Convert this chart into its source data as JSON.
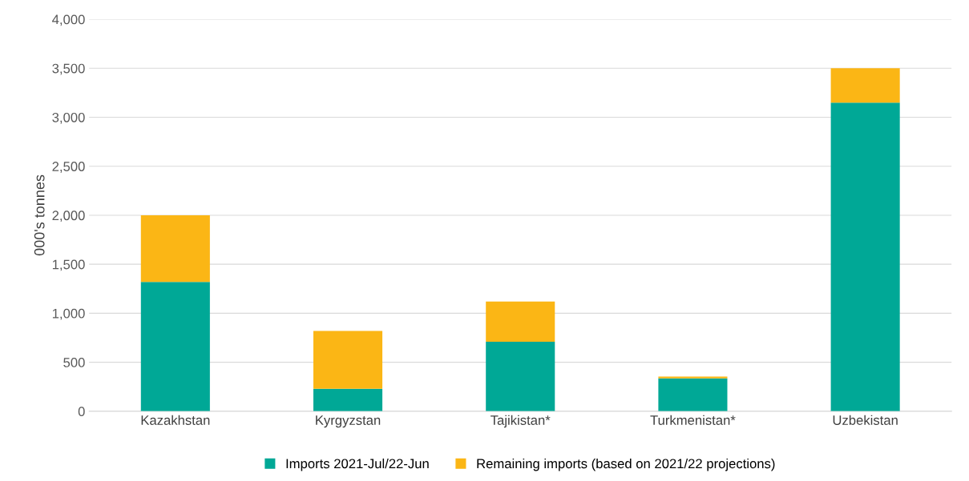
{
  "chart_data": {
    "type": "bar",
    "ylabel": "000's tonnes",
    "categories": [
      "Kazakhstan",
      "Kyrgyzstan",
      "Tajikistan*",
      "Turkmenistan*",
      "Uzbekistan"
    ],
    "series": [
      {
        "name": "Imports 2021-Jul/22-Jun",
        "color": "#00a896",
        "values": [
          1320,
          230,
          710,
          335,
          3150
        ]
      },
      {
        "name": "Remaining imports (based on 2021/22 projections)",
        "color": "#fbb615",
        "values": [
          680,
          590,
          410,
          20,
          350
        ]
      }
    ],
    "stacked": true,
    "ylim": [
      0,
      4000
    ],
    "yticks": [
      {
        "value": 0,
        "label": "0"
      },
      {
        "value": 500,
        "label": "500"
      },
      {
        "value": 1000,
        "label": "1,000"
      },
      {
        "value": 1500,
        "label": "1,500"
      },
      {
        "value": 2000,
        "label": "2,000"
      },
      {
        "value": 2500,
        "label": "2,500"
      },
      {
        "value": 3000,
        "label": "3,000"
      },
      {
        "value": 3500,
        "label": "3,500"
      },
      {
        "value": 4000,
        "label": "4,000"
      }
    ],
    "grid": "y",
    "legend": "bottom"
  }
}
